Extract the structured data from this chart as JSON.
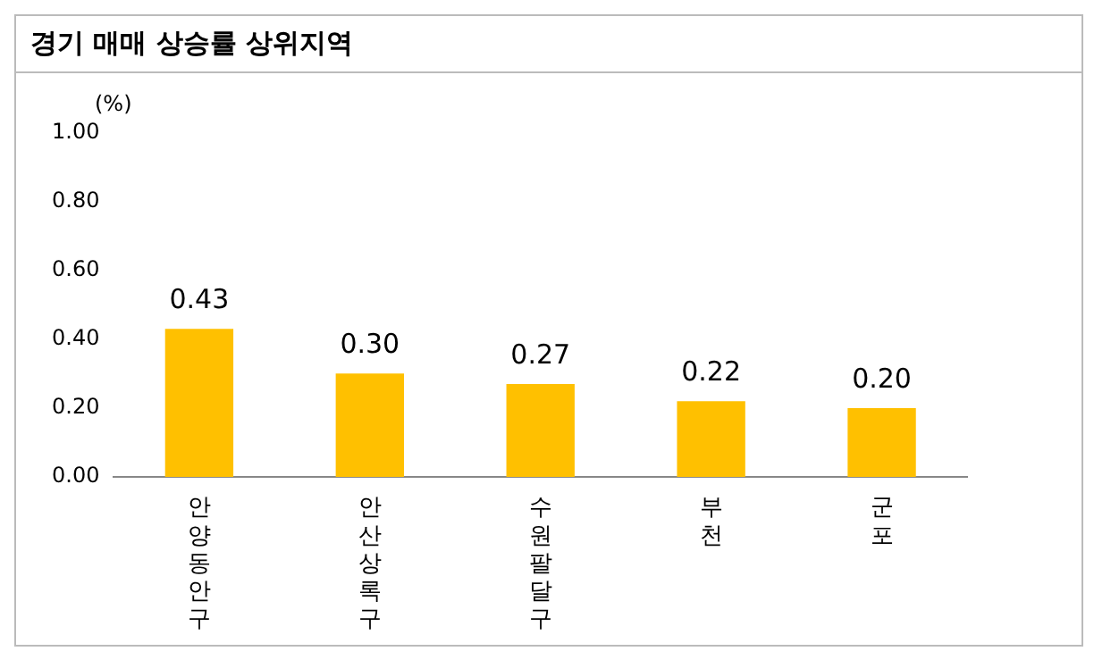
{
  "chart_data": {
    "type": "bar",
    "title": "경기 매매 상승률 상위지역",
    "ylabel": "(%)",
    "categories": [
      "안양동안구",
      "안산상록구",
      "수원팔달구",
      "부천",
      "군포"
    ],
    "values": [
      0.43,
      0.3,
      0.27,
      0.22,
      0.2
    ],
    "value_labels": [
      "0.43",
      "0.30",
      "0.27",
      "0.22",
      "0.20"
    ],
    "color": "#ffc000",
    "ylim": [
      0,
      1
    ],
    "yticks": [
      {
        "value": 0,
        "label": "0.00"
      },
      {
        "value": 0.2,
        "label": "0.20"
      },
      {
        "value": 0.4,
        "label": "0.40"
      },
      {
        "value": 0.6,
        "label": "0.60"
      },
      {
        "value": 0.8,
        "label": "0.80"
      },
      {
        "value": 1,
        "label": "1.00"
      }
    ],
    "grid": false,
    "legend": false
  }
}
